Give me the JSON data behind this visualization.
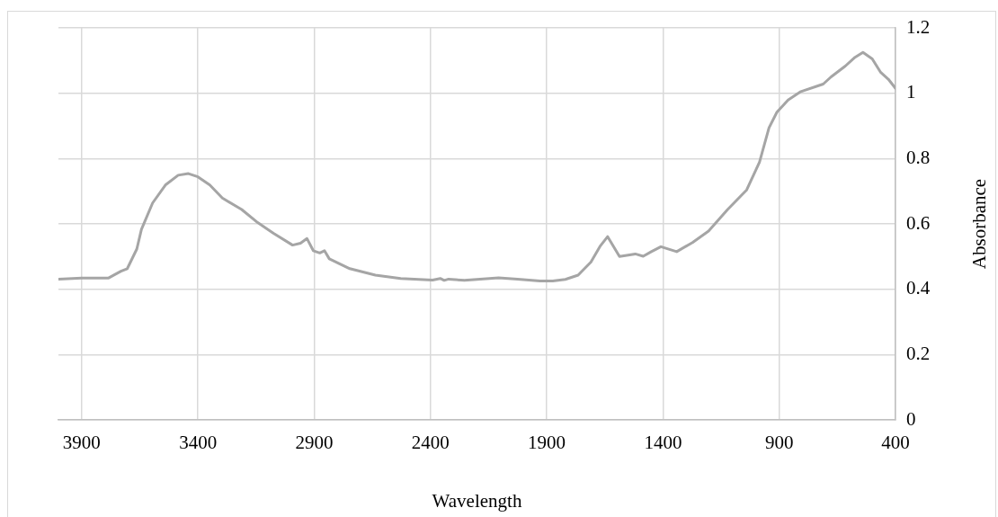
{
  "chart_data": {
    "type": "line",
    "xlabel": "Wavelength",
    "ylabel": "Absorbance",
    "xlim": [
      4000,
      400
    ],
    "xticks": [
      3900,
      3400,
      2900,
      2400,
      1900,
      1400,
      900,
      400
    ],
    "ylim": [
      0,
      1.2
    ],
    "yticks": [
      0,
      0.2,
      0.4,
      0.6,
      0.8,
      1,
      1.2
    ],
    "grid": true,
    "legend": false,
    "marker": "none",
    "line_style": "solid",
    "series": [
      {
        "color": "#a5a5a5",
        "x": [
          4000,
          3900,
          3786,
          3731,
          3704,
          3663,
          3643,
          3595,
          3540,
          3485,
          3441,
          3400,
          3349,
          3295,
          3212,
          3143,
          3075,
          2993,
          2959,
          2931,
          2904,
          2876,
          2856,
          2835,
          2747,
          2637,
          2528,
          2391,
          2358,
          2341,
          2322,
          2254,
          2107,
          2025,
          1929,
          1874,
          1820,
          1765,
          1710,
          1669,
          1638,
          1587,
          1519,
          1485,
          1450,
          1409,
          1341,
          1273,
          1204,
          1122,
          1040,
          985,
          944,
          910,
          862,
          807,
          711,
          677,
          616,
          574,
          540,
          500,
          465,
          431,
          400
        ],
        "values": [
          0.431,
          0.434,
          0.434,
          0.455,
          0.463,
          0.523,
          0.583,
          0.664,
          0.719,
          0.749,
          0.754,
          0.744,
          0.719,
          0.679,
          0.644,
          0.604,
          0.571,
          0.535,
          0.541,
          0.555,
          0.518,
          0.511,
          0.518,
          0.493,
          0.463,
          0.443,
          0.433,
          0.428,
          0.433,
          0.427,
          0.431,
          0.427,
          0.435,
          0.431,
          0.425,
          0.425,
          0.43,
          0.443,
          0.483,
          0.533,
          0.561,
          0.5,
          0.508,
          0.501,
          0.515,
          0.53,
          0.515,
          0.543,
          0.578,
          0.644,
          0.704,
          0.789,
          0.894,
          0.942,
          0.979,
          1.005,
          1.028,
          1.05,
          1.083,
          1.11,
          1.125,
          1.105,
          1.065,
          1.043,
          1.015
        ]
      }
    ]
  }
}
